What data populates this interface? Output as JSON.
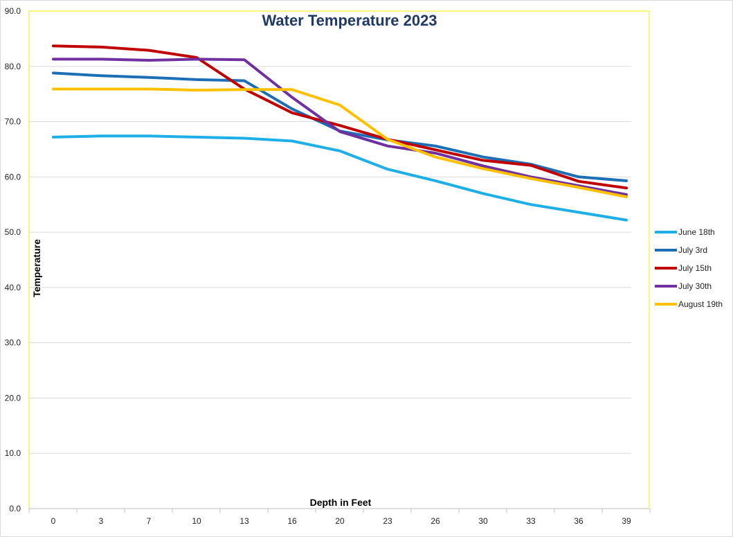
{
  "chart_data": {
    "type": "line",
    "title": "Water Temperature 2023",
    "xlabel": "Depth in Feet",
    "ylabel": "Temperature",
    "categories": [
      "0",
      "3",
      "7",
      "10",
      "13",
      "16",
      "20",
      "23",
      "26",
      "30",
      "33",
      "36",
      "39"
    ],
    "ylim": [
      0,
      90
    ],
    "ytick_values": [
      0,
      10,
      20,
      30,
      40,
      50,
      60,
      70,
      80,
      90
    ],
    "ytick_labels": [
      "0.0",
      "10.0",
      "20.0",
      "30.0",
      "40.0",
      "50.0",
      "60.0",
      "70.0",
      "80.0",
      "90.0"
    ],
    "grid": true,
    "legend_position": "right",
    "series": [
      {
        "name": "June 18th",
        "color": "#1EAFE6",
        "values": [
          67.2,
          67.4,
          67.4,
          67.2,
          67.0,
          66.5,
          64.7,
          61.4,
          59.3,
          57.0,
          55.0,
          53.6,
          52.2
        ]
      },
      {
        "name": "July 3rd",
        "color": "#1C6FB4",
        "values": [
          78.8,
          78.3,
          78.0,
          77.6,
          77.4,
          72.3,
          68.3,
          66.7,
          65.6,
          63.6,
          62.3,
          60.0,
          59.3
        ]
      },
      {
        "name": "July 15th",
        "color": "#C00000",
        "values": [
          83.7,
          83.5,
          82.9,
          81.6,
          75.9,
          71.6,
          69.3,
          66.8,
          64.9,
          63.0,
          62.1,
          59.2,
          58.0
        ]
      },
      {
        "name": "July 30th",
        "color": "#7030A0",
        "values": [
          81.3,
          81.3,
          81.1,
          81.3,
          81.2,
          74.4,
          68.2,
          65.6,
          64.3,
          62.0,
          60.0,
          58.4,
          56.8
        ]
      },
      {
        "name": "August 19th",
        "color": "#FFC000",
        "values": [
          75.9,
          75.9,
          75.9,
          75.7,
          75.8,
          75.8,
          73.0,
          66.8,
          63.6,
          61.5,
          59.7,
          58.1,
          56.4
        ]
      }
    ],
    "title_color": "#1F3864",
    "plot_border_color": "#F2F200",
    "grid_color": "#D9D9D9"
  }
}
